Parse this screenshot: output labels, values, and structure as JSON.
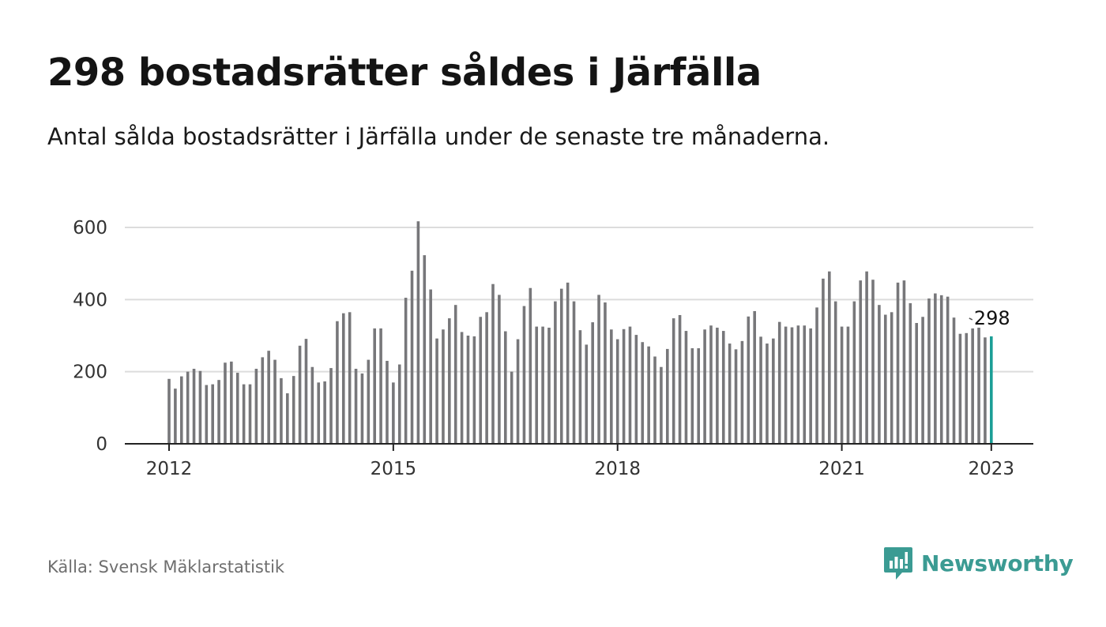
{
  "header": {
    "title": "298 bostadsrätter såldes i Järfälla",
    "subtitle": "Antal sålda bostadsrätter i Järfälla under de senaste tre månaderna."
  },
  "footer": {
    "source": "Källa: Svensk Mäklarstatistik",
    "brand": "Newsworthy"
  },
  "colors": {
    "bar": "#77777a",
    "highlight": "#1a9e96",
    "grid": "#dcdcdc",
    "axis": "#222222",
    "brand": "#3b9b93"
  },
  "chart_data": {
    "type": "bar",
    "title": "298 bostadsrätter såldes i Järfälla",
    "subtitle": "Antal sålda bostadsrätter i Järfälla under de senaste tre månaderna.",
    "xlabel": "",
    "ylabel": "",
    "ylim": [
      0,
      600
    ],
    "yticks": [
      "0",
      "200",
      "400",
      "600"
    ],
    "x_start": "2012-01",
    "x_ticks": [
      "2012",
      "2015",
      "2018",
      "2021",
      "2023"
    ],
    "x_tick_dates": [
      "2012-01",
      "2015-01",
      "2018-01",
      "2021-01",
      "2023-01"
    ],
    "grid": true,
    "highlight_last": true,
    "end_label": "298",
    "values": [
      180,
      153,
      187,
      200,
      208,
      202,
      163,
      165,
      177,
      225,
      228,
      197,
      165,
      165,
      208,
      240,
      258,
      233,
      182,
      140,
      188,
      272,
      291,
      213,
      170,
      173,
      210,
      340,
      362,
      365,
      208,
      195,
      233,
      320,
      320,
      230,
      170,
      220,
      405,
      480,
      617,
      523,
      428,
      292,
      317,
      348,
      385,
      310,
      300,
      298,
      352,
      365,
      443,
      413,
      312,
      200,
      290,
      382,
      432,
      325,
      325,
      322,
      395,
      430,
      447,
      395,
      315,
      275,
      337,
      413,
      392,
      317,
      290,
      318,
      325,
      302,
      282,
      270,
      242,
      213,
      263,
      348,
      357,
      313,
      265,
      265,
      317,
      328,
      322,
      313,
      278,
      262,
      285,
      353,
      368,
      297,
      278,
      292,
      338,
      325,
      323,
      328,
      328,
      320,
      378,
      458,
      478,
      395,
      325,
      325,
      395,
      453,
      478,
      455,
      385,
      358,
      365,
      447,
      453,
      390,
      335,
      352,
      403,
      417,
      412,
      408,
      350,
      305,
      307,
      320,
      322,
      295,
      298
    ]
  }
}
